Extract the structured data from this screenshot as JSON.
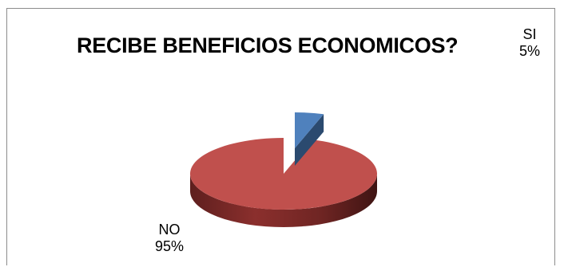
{
  "chart_data": {
    "type": "pie",
    "style": "3d-exploded",
    "title": "RECIBE BENEFICIOS ECONOMICOS?",
    "slices": [
      {
        "label": "SI",
        "percent_label": "5%",
        "value": 5,
        "color": "#4f81bd"
      },
      {
        "label": "NO",
        "percent_label": "95%",
        "value": 95,
        "color": "#c0504d"
      }
    ],
    "legend": "none"
  }
}
